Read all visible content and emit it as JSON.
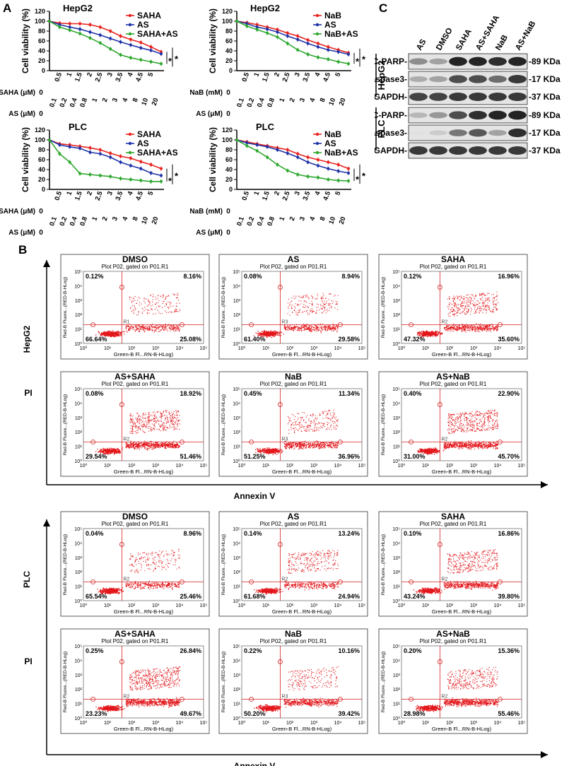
{
  "panel_labels": {
    "a": "A",
    "b": "B",
    "c": "C"
  },
  "chart_data": [
    {
      "type": "line",
      "title": "HepG2",
      "ylabel": "Cell viability (%)",
      "ylim": [
        0,
        120
      ],
      "yticks": [
        "0",
        "20",
        "40",
        "60",
        "80",
        "100",
        "120"
      ],
      "row1_label": "SAHA (μM)",
      "row1_ticks": [
        "0",
        "0.5",
        "1",
        "1.5",
        "2",
        "2.5",
        "3",
        "3.5",
        "4",
        "4.5",
        "5"
      ],
      "row2_label": "AS (μM)",
      "row2_ticks": [
        "0",
        "0.1",
        "0.2",
        "0.4",
        "0.8",
        "1",
        "2",
        "3",
        "4",
        "8",
        "10",
        "20"
      ],
      "significance": [
        "*",
        "*"
      ],
      "series": [
        {
          "name": "SAHA",
          "color": "#e8231e",
          "values": [
            100,
            96,
            95,
            95,
            93,
            88,
            80,
            70,
            63,
            57,
            48,
            38
          ]
        },
        {
          "name": "AS",
          "color": "#1f33a8",
          "values": [
            100,
            93,
            88,
            84,
            78,
            72,
            65,
            58,
            52,
            46,
            41,
            34
          ]
        },
        {
          "name": "SAHA+AS",
          "color": "#2ea82e",
          "values": [
            100,
            88,
            82,
            75,
            66,
            56,
            44,
            32,
            26,
            22,
            18,
            14
          ]
        }
      ]
    },
    {
      "type": "line",
      "title": "HepG2",
      "ylabel": "Cell viability (%)",
      "ylim": [
        0,
        120
      ],
      "yticks": [
        "0",
        "20",
        "40",
        "60",
        "80",
        "100",
        "120"
      ],
      "row1_label": "NaB (mM)",
      "row1_ticks": [
        "0",
        "0.5",
        "1",
        "1.5",
        "2",
        "2.5",
        "3",
        "3.5",
        "4",
        "4.5",
        "5"
      ],
      "row2_label": "AS (μM)",
      "row2_ticks": [
        "0",
        "0.1",
        "0.2",
        "0.4",
        "0.8",
        "1",
        "2",
        "3",
        "4",
        "8",
        "10",
        "20"
      ],
      "significance": [
        "*",
        "*"
      ],
      "series": [
        {
          "name": "NaB",
          "color": "#e8231e",
          "values": [
            100,
            97,
            93,
            88,
            83,
            76,
            70,
            62,
            55,
            48,
            42,
            36
          ]
        },
        {
          "name": "AS",
          "color": "#1f33a8",
          "values": [
            100,
            95,
            88,
            84,
            78,
            70,
            63,
            55,
            48,
            42,
            38,
            33
          ]
        },
        {
          "name": "NaB+AS",
          "color": "#2ea82e",
          "values": [
            100,
            90,
            83,
            76,
            68,
            55,
            42,
            33,
            27,
            23,
            18,
            14
          ]
        }
      ]
    },
    {
      "type": "line",
      "title": "PLC",
      "ylabel": "Cell viability (%)",
      "ylim": [
        0,
        120
      ],
      "yticks": [
        "0",
        "20",
        "40",
        "60",
        "80",
        "100",
        "120"
      ],
      "row1_label": "SAHA (μM)",
      "row1_ticks": [
        "0",
        "0.5",
        "1",
        "1.5",
        "2",
        "2.5",
        "3",
        "3.5",
        "4",
        "4.5",
        "5"
      ],
      "row2_label": "AS (μM)",
      "row2_ticks": [
        "0",
        "0.1",
        "0.2",
        "0.4",
        "0.8",
        "1",
        "2",
        "3",
        "4",
        "8",
        "10",
        "20"
      ],
      "significance": [
        "*",
        "*"
      ],
      "series": [
        {
          "name": "SAHA",
          "color": "#e8231e",
          "values": [
            100,
            92,
            90,
            87,
            84,
            80,
            73,
            67,
            63,
            56,
            50,
            42
          ]
        },
        {
          "name": "AS",
          "color": "#1f33a8",
          "values": [
            100,
            90,
            86,
            83,
            75,
            72,
            65,
            55,
            48,
            42,
            33,
            28
          ]
        },
        {
          "name": "SAHA+AS",
          "color": "#2ea82e",
          "values": [
            100,
            72,
            55,
            32,
            30,
            28,
            26,
            22,
            20,
            18,
            16,
            16
          ]
        }
      ]
    },
    {
      "type": "line",
      "title": "PLC",
      "ylabel": "Cell viability (%)",
      "ylim": [
        0,
        120
      ],
      "yticks": [
        "0",
        "20",
        "40",
        "60",
        "80",
        "100",
        "120"
      ],
      "row1_label": "NaB (mM)",
      "row1_ticks": [
        "0",
        "0.5",
        "1",
        "1.5",
        "2",
        "2.5",
        "3",
        "3.5",
        "4",
        "4.5",
        "5"
      ],
      "row2_label": "AS (μM)",
      "row2_ticks": [
        "0",
        "0.1",
        "0.2",
        "0.4",
        "0.8",
        "1",
        "2",
        "3",
        "4",
        "8",
        "10",
        "20"
      ],
      "significance": [
        "*",
        "*"
      ],
      "series": [
        {
          "name": "NaB",
          "color": "#e8231e",
          "values": [
            100,
            96,
            92,
            88,
            84,
            80,
            72,
            65,
            60,
            55,
            50,
            42
          ]
        },
        {
          "name": "AS",
          "color": "#1f33a8",
          "values": [
            100,
            94,
            90,
            86,
            80,
            73,
            65,
            55,
            48,
            42,
            37,
            33
          ]
        },
        {
          "name": "NaB+AS",
          "color": "#2ea82e",
          "values": [
            100,
            88,
            78,
            65,
            50,
            38,
            30,
            26,
            24,
            20,
            18,
            17
          ]
        }
      ]
    }
  ],
  "western": {
    "lanes": [
      "AS",
      "DMSO",
      "SAHA",
      "AS+SAHA",
      "NaB",
      "AS+NaB"
    ],
    "groups": [
      {
        "name": "HepG2",
        "rows": [
          {
            "label": "C-PARP-",
            "kda": "89 KDa",
            "intensity": [
              0.45,
              0.35,
              0.95,
              0.95,
              0.9,
              0.95
            ]
          },
          {
            "label": "C-caspase3-",
            "kda": "17 KDa",
            "intensity": [
              0.3,
              0.35,
              0.75,
              0.75,
              0.6,
              0.85
            ]
          },
          {
            "label": "GAPDH-",
            "kda": "37 KDa",
            "intensity": [
              0.8,
              0.8,
              0.85,
              0.85,
              0.85,
              0.85
            ]
          }
        ]
      },
      {
        "name": "PLC",
        "rows": [
          {
            "label": "C-PARP-",
            "kda": "89 KDa",
            "intensity": [
              0.25,
              0.4,
              0.75,
              0.9,
              0.95,
              0.95
            ]
          },
          {
            "label": "C-caspase3-",
            "kda": "17 KDa",
            "intensity": [
              0.05,
              0.15,
              0.55,
              0.7,
              0.35,
              0.9
            ]
          },
          {
            "label": "GAPDH-",
            "kda": "37 KDa",
            "intensity": [
              0.85,
              0.85,
              0.85,
              0.85,
              0.85,
              0.85
            ]
          }
        ]
      }
    ]
  },
  "flow": {
    "plot_header": "Plot P02, gated on P01.R1",
    "y_axis": "Red-B Fluore...(RED-B-HLog)",
    "x_axis": "Green-B Fl...RN-B-HLog)",
    "axis_ticks": [
      "10⁰",
      "10¹",
      "10²",
      "10³",
      "10⁴",
      "10⁵"
    ],
    "xlabel": "Annexin V",
    "ylabel": "PI",
    "sections": [
      {
        "cell": "HepG2",
        "plots": [
          {
            "title": "DMSO",
            "ul": "0.12%",
            "ur": "8.16%",
            "ll": "66.64%",
            "lr": "25.08%",
            "gate": "R1",
            "early": 0.25,
            "late": 0.08
          },
          {
            "title": "AS",
            "ul": "0.08%",
            "ur": "8.94%",
            "ll": "61.40%",
            "lr": "29.58%",
            "gate": "R3",
            "early": 0.3,
            "late": 0.09
          },
          {
            "title": "SAHA",
            "ul": "0.12%",
            "ur": "16.96%",
            "ll": "47.32%",
            "lr": "35.60%",
            "gate": "R2",
            "early": 0.36,
            "late": 0.17
          },
          {
            "title": "AS+SAHA",
            "ul": "0.08%",
            "ur": "18.92%",
            "ll": "29.54%",
            "lr": "51.46%",
            "gate": "R2",
            "early": 0.51,
            "late": 0.19
          },
          {
            "title": "NaB",
            "ul": "0.45%",
            "ur": "11.34%",
            "ll": "51.25%",
            "lr": "36.96%",
            "gate": "R3",
            "early": 0.37,
            "late": 0.11
          },
          {
            "title": "AS+NaB",
            "ul": "0.40%",
            "ur": "22.90%",
            "ll": "31.00%",
            "lr": "45.70%",
            "gate": "R2",
            "early": 0.46,
            "late": 0.23
          }
        ]
      },
      {
        "cell": "PLC",
        "plots": [
          {
            "title": "DMSO",
            "ul": "0.04%",
            "ur": "8.96%",
            "ll": "65.54%",
            "lr": "25.46%",
            "gate": "R2",
            "early": 0.25,
            "late": 0.09
          },
          {
            "title": "AS",
            "ul": "0.14%",
            "ur": "13.24%",
            "ll": "61.68%",
            "lr": "24.94%",
            "gate": "R2",
            "early": 0.25,
            "late": 0.13
          },
          {
            "title": "SAHA",
            "ul": "0.10%",
            "ur": "16.86%",
            "ll": "43.24%",
            "lr": "39.80%",
            "gate": "R2",
            "early": 0.4,
            "late": 0.17
          },
          {
            "title": "AS+SAHA",
            "ul": "0.25%",
            "ur": "26.84%",
            "ll": "23.23%",
            "lr": "49.67%",
            "gate": "R2",
            "early": 0.5,
            "late": 0.27
          },
          {
            "title": "NaB",
            "ul": "0.22%",
            "ur": "10.16%",
            "ll": "50.20%",
            "lr": "39.42%",
            "gate": "R3",
            "early": 0.39,
            "late": 0.1
          },
          {
            "title": "AS+NaB",
            "ul": "0.20%",
            "ur": "15.36%",
            "ll": "28.98%",
            "lr": "55.46%",
            "gate": "R2",
            "early": 0.55,
            "late": 0.15
          }
        ]
      }
    ]
  }
}
